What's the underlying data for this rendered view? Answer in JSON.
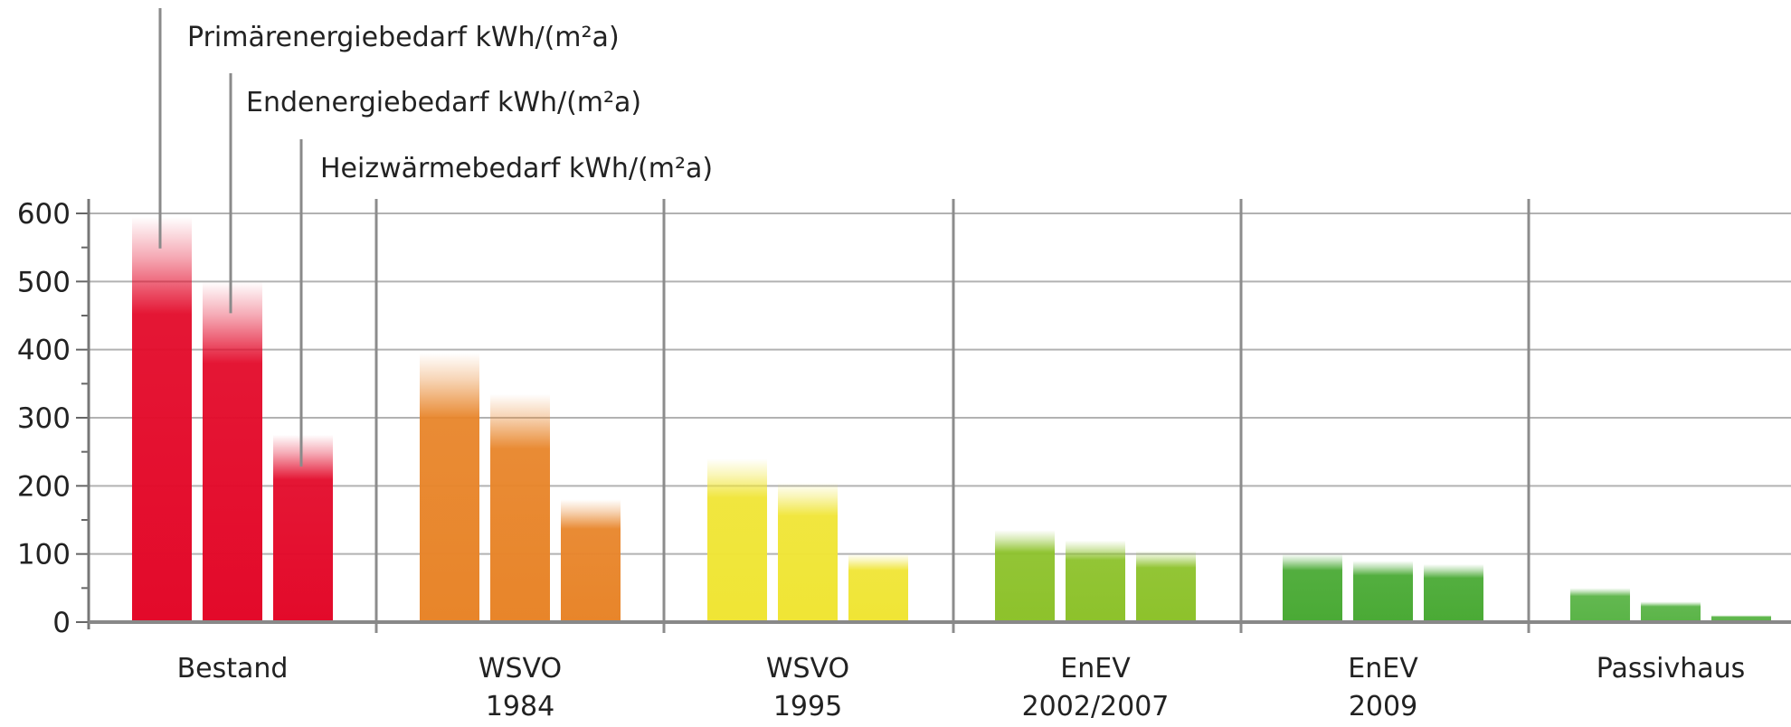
{
  "chart_data": {
    "type": "bar",
    "categories": [
      [
        "Bestand"
      ],
      [
        "WSVO",
        "1984"
      ],
      [
        "WSVO",
        "1995"
      ],
      [
        "EnEV",
        "2002/2007"
      ],
      [
        "EnEV",
        "2009"
      ],
      [
        "Passivhaus"
      ]
    ],
    "series": [
      {
        "name": "Primärenergiebedarf kWh/(m²a)",
        "values": [
          595,
          395,
          240,
          135,
          100,
          50
        ]
      },
      {
        "name": "Endenergiebedarf kWh/(m²a)",
        "values": [
          500,
          335,
          205,
          120,
          90,
          30
        ]
      },
      {
        "name": "Heizwärmebedarf kWh/(m²a)",
        "values": [
          275,
          180,
          100,
          105,
          85,
          10
        ]
      }
    ],
    "group_colors": [
      "#e30a2a",
      "#e8852a",
      "#f0e535",
      "#8dc22b",
      "#4aaa35",
      "#5ab447"
    ],
    "yticks": [
      "0",
      "100",
      "200",
      "300",
      "400",
      "500",
      "600"
    ],
    "ylim": [
      0,
      600
    ],
    "xlabel": "",
    "ylabel": "",
    "grid": true,
    "legend": "top-left, leader lines to first group"
  }
}
